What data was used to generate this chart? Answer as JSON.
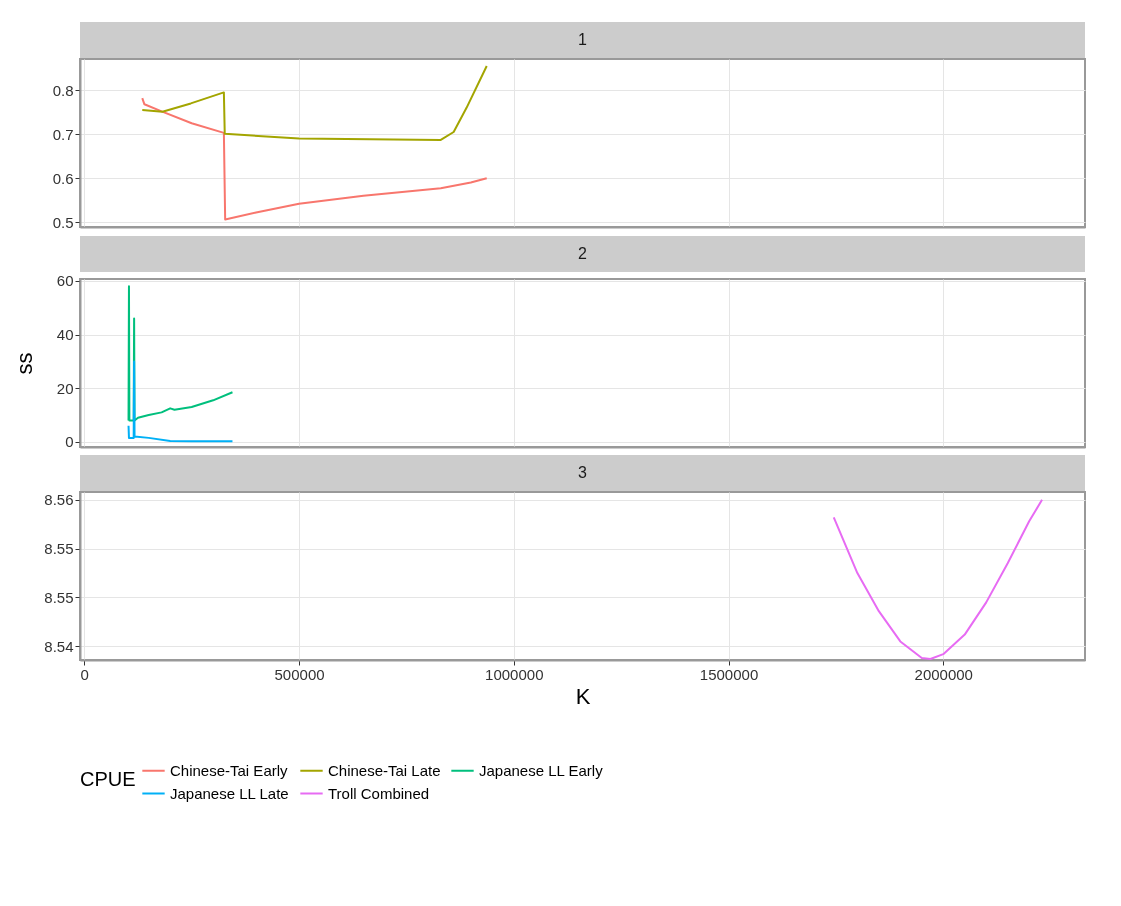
{
  "chart_data": [
    {
      "type": "line",
      "title": "1",
      "legend": "bottom",
      "xlim": [
        -10000,
        2330000
      ],
      "xticks": [
        0,
        500000,
        1000000,
        1500000,
        2000000
      ],
      "ylim": [
        0.489,
        0.871
      ],
      "yticks": [
        0.5,
        0.6,
        0.7,
        0.8
      ],
      "tick_labels": "y",
      "grid": true,
      "series": [
        {
          "name": "Chinese-Tai Early",
          "color": "#f8766d",
          "x": [
            135000,
            140000,
            180000,
            250000,
            325000,
            328000,
            400000,
            500000,
            650000,
            830000,
            900000,
            937000
          ],
          "values": [
            0.782,
            0.768,
            0.752,
            0.725,
            0.703,
            0.506,
            0.522,
            0.542,
            0.56,
            0.577,
            0.59,
            0.6
          ]
        },
        {
          "name": "Chinese-Tai Late",
          "color": "#a3a500",
          "x": [
            135000,
            182000,
            248000,
            325000,
            327000,
            500000,
            830000,
            860000,
            890000,
            937000
          ],
          "values": [
            0.755,
            0.751,
            0.77,
            0.795,
            0.701,
            0.69,
            0.687,
            0.705,
            0.76,
            0.855
          ]
        }
      ]
    },
    {
      "type": "line",
      "title": "2",
      "ylabel": "ss",
      "legend": "bottom",
      "xlim": [
        -10000,
        2330000
      ],
      "xticks": [
        0,
        500000,
        1000000,
        1500000,
        2000000
      ],
      "ylim": [
        -1.9,
        60.7
      ],
      "yticks": [
        0,
        20,
        40,
        60
      ],
      "tick_labels": "y",
      "grid": true,
      "series": [
        {
          "name": "Japanese LL Early",
          "color": "#00bf7d",
          "x": [
            103000,
            104000,
            105000,
            115000,
            116000,
            117000,
            125000,
            150000,
            180000,
            200000,
            210000,
            250000,
            300000,
            345000
          ],
          "values": [
            8,
            58,
            8,
            8,
            46,
            8,
            9,
            10,
            11,
            12.5,
            12,
            13,
            15.5,
            18.5
          ]
        },
        {
          "name": "Japanese LL Late",
          "color": "#00b0f6",
          "x": [
            103000,
            104000,
            115000,
            116000,
            117000,
            150000,
            200000,
            250000,
            345000
          ],
          "values": [
            6,
            1.5,
            1.5,
            30,
            2,
            1.5,
            0.3,
            0.2,
            0.2
          ]
        }
      ]
    },
    {
      "type": "line",
      "title": "3",
      "xlabel": "K",
      "xlim": [
        -10000,
        2330000
      ],
      "xticks": [
        0,
        500000,
        1000000,
        1500000,
        2000000
      ],
      "ylim": [
        8.5436,
        8.5608
      ],
      "yticks": [
        {
          "value": 8.545,
          "label": "8.54"
        },
        {
          "value": 8.55,
          "label": "8.55"
        },
        {
          "value": 8.555,
          "label": "8.55"
        },
        {
          "value": 8.56,
          "label": "8.56"
        }
      ],
      "grid": true,
      "legend": "bottom",
      "legend_title": "CPUE",
      "series": [
        {
          "name": "Troll Combined",
          "color": "#e76bf3",
          "x": [
            1745000,
            1800000,
            1850000,
            1900000,
            1950000,
            1970000,
            2000000,
            2050000,
            2100000,
            2150000,
            2200000,
            2230000
          ],
          "values": [
            8.5582,
            8.5525,
            8.5486,
            8.5455,
            8.5438,
            8.5437,
            8.5442,
            8.5462,
            8.5495,
            8.5535,
            8.5578,
            8.56
          ]
        }
      ]
    }
  ]
}
